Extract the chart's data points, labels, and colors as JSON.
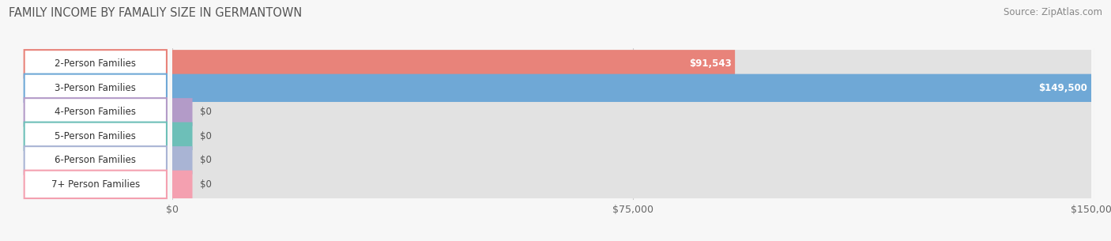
{
  "title": "FAMILY INCOME BY FAMALIY SIZE IN GERMANTOWN",
  "source": "Source: ZipAtlas.com",
  "categories": [
    "2-Person Families",
    "3-Person Families",
    "4-Person Families",
    "5-Person Families",
    "6-Person Families",
    "7+ Person Families"
  ],
  "values": [
    91543,
    149500,
    0,
    0,
    0,
    0
  ],
  "bar_colors": [
    "#E8837A",
    "#6FA8D6",
    "#B39BC8",
    "#6DBFB8",
    "#A9B4D4",
    "#F4A0B0"
  ],
  "value_labels": [
    "$91,543",
    "$149,500",
    "$0",
    "$0",
    "$0",
    "$0"
  ],
  "xlim_max": 149500,
  "xticks": [
    0,
    75000,
    150000
  ],
  "xtick_labels": [
    "$0",
    "$75,000",
    "$150,000"
  ],
  "background_color": "#f7f7f7",
  "bar_bg_color": "#e2e2e2",
  "title_fontsize": 10.5,
  "source_fontsize": 8.5,
  "label_fontsize": 8.5,
  "value_fontsize": 8.5
}
